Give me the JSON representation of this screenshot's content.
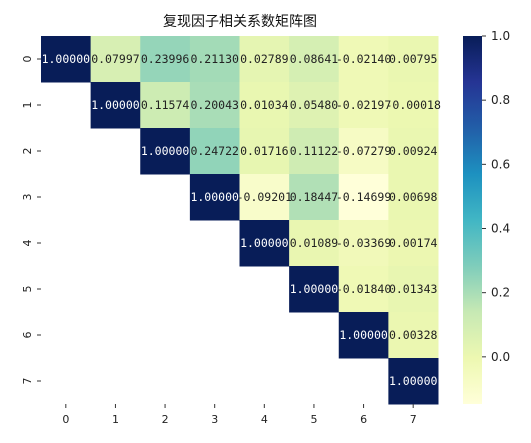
{
  "chart_data": {
    "type": "heatmap",
    "title": "复现因子相关系数矩阵图",
    "xlabel": "",
    "ylabel": "",
    "x_ticks": [
      "0",
      "1",
      "2",
      "3",
      "4",
      "5",
      "6",
      "7"
    ],
    "y_ticks": [
      "0",
      "1",
      "2",
      "3",
      "4",
      "5",
      "6",
      "7"
    ],
    "mask": "lower-triangle",
    "matrix": [
      [
        1.0,
        0.07997,
        0.23996,
        0.2113,
        0.02789,
        0.08641,
        -0.0214,
        0.00795
      ],
      [
        null,
        1.0,
        0.11574,
        0.20043,
        0.01034,
        0.0548,
        -0.02197,
        -0.00018
      ],
      [
        null,
        null,
        1.0,
        0.24722,
        0.01716,
        0.11122,
        -0.07279,
        0.00924
      ],
      [
        null,
        null,
        null,
        1.0,
        -0.09201,
        0.18447,
        -0.14699,
        0.00698
      ],
      [
        null,
        null,
        null,
        null,
        1.0,
        0.01089,
        -0.03369,
        0.00174
      ],
      [
        null,
        null,
        null,
        null,
        null,
        1.0,
        -0.0184,
        0.01343
      ],
      [
        null,
        null,
        null,
        null,
        null,
        null,
        1.0,
        0.00328
      ],
      [
        null,
        null,
        null,
        null,
        null,
        null,
        null,
        1.0
      ]
    ],
    "labels": [
      [
        "1.00000",
        "0.07997",
        "0.23996",
        "0.21130",
        "0.02789",
        "0.08641",
        "-0.02140",
        "0.00795"
      ],
      [
        "",
        "1.00000",
        "0.11574",
        "0.20043",
        "0.01034",
        "0.05480",
        "-0.02197",
        "-0.00018"
      ],
      [
        "",
        "",
        "1.00000",
        "0.24722",
        "0.01716",
        "0.11122",
        "-0.07279",
        "0.00924"
      ],
      [
        "",
        "",
        "",
        "1.00000",
        "-0.09201",
        "0.18447",
        "-0.14699",
        "0.00698"
      ],
      [
        "",
        "",
        "",
        "",
        "1.00000",
        "0.01089",
        "-0.03369",
        "0.00174"
      ],
      [
        "",
        "",
        "",
        "",
        "",
        "1.00000",
        "-0.01840",
        "0.01343"
      ],
      [
        "",
        "",
        "",
        "",
        "",
        "",
        "1.00000",
        "0.00328"
      ],
      [
        "",
        "",
        "",
        "",
        "",
        "",
        "",
        "1.00000"
      ]
    ],
    "colormap": "YlGnBu",
    "colorbar": {
      "vmin": -0.147,
      "vmax": 1.0,
      "ticks": [
        0.0,
        0.2,
        0.4,
        0.6,
        0.8,
        1.0
      ],
      "tick_labels": [
        "0.0",
        "0.2",
        "0.4",
        "0.6",
        "0.8",
        "1.0"
      ]
    },
    "grid": false,
    "legend": "colorbar-right"
  }
}
